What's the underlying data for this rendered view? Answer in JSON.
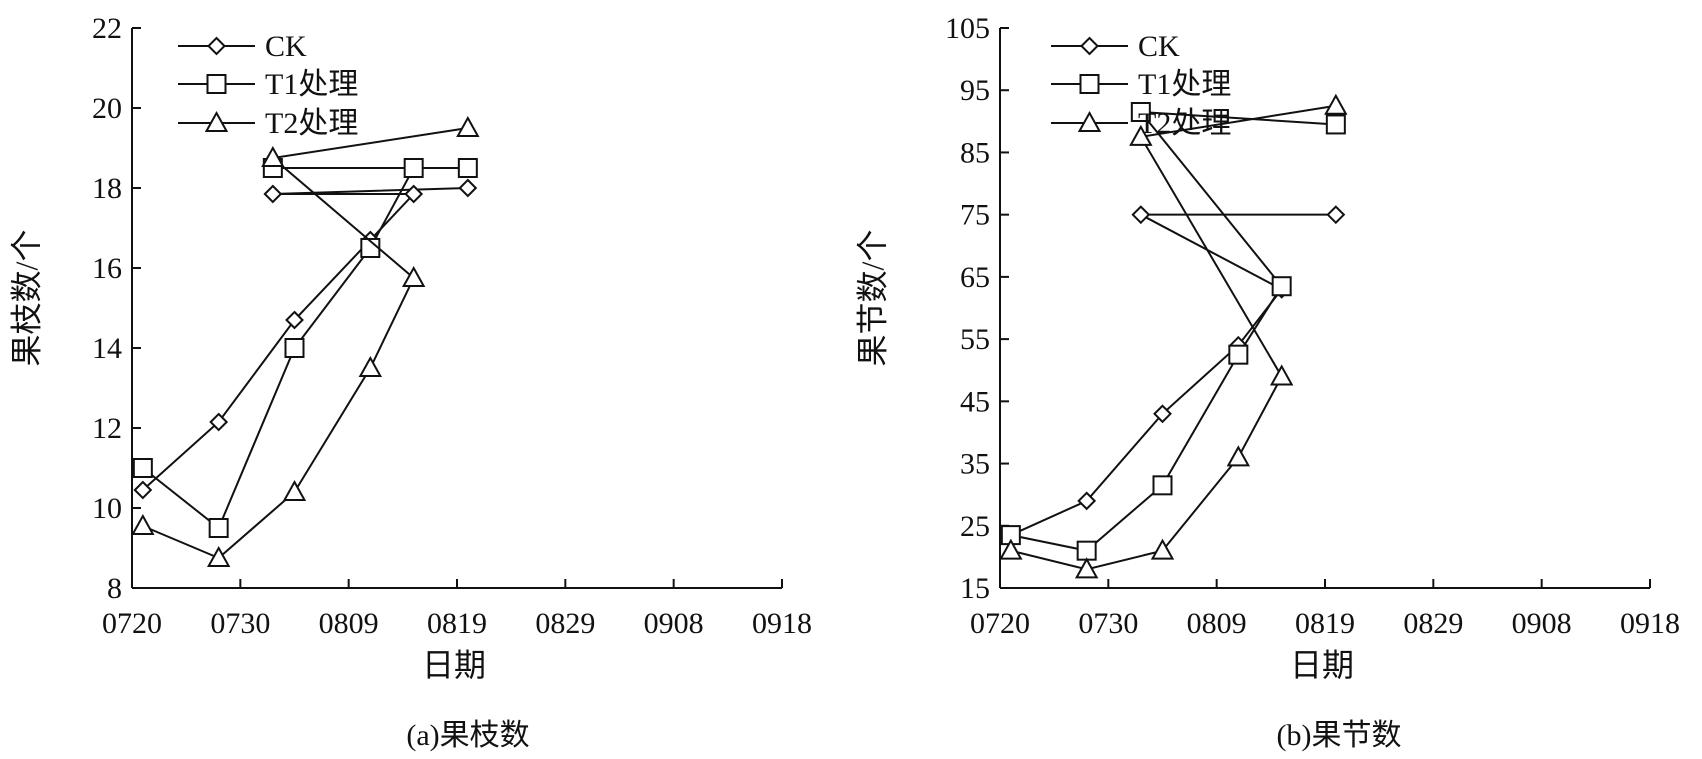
{
  "chart_data": [
    {
      "type": "line",
      "caption": "(a)果枝数",
      "xlabel": "日期",
      "ylabel": "果枝数/个",
      "x_ticks": [
        "0720",
        "0730",
        "0809",
        "0819",
        "0829",
        "0908",
        "0918"
      ],
      "xlim": [
        "0720",
        "0918"
      ],
      "ylim": [
        8,
        22
      ],
      "y_ticks": [
        8,
        10,
        12,
        14,
        16,
        18,
        20,
        22
      ],
      "legend_position": "top-left",
      "grid": false,
      "series": [
        {
          "name": "CK",
          "marker": "diamond",
          "x": [
            "0721",
            "0728",
            "0735",
            "0742",
            "0746",
            "0802",
            "0820"
          ],
          "y": [
            10.45,
            12.15,
            14.7,
            16.7,
            17.85,
            17.85,
            18.0
          ]
        },
        {
          "name": "T1处理",
          "marker": "square",
          "x": [
            "0721",
            "0728",
            "0735",
            "0742",
            "0746",
            "0802",
            "0820"
          ],
          "y": [
            11.0,
            9.5,
            14.0,
            16.5,
            18.5,
            18.5,
            18.5
          ]
        },
        {
          "name": "T2处理",
          "marker": "triangle",
          "x": [
            "0721",
            "0728",
            "0735",
            "0742",
            "0746",
            "0802",
            "0820"
          ],
          "y": [
            9.55,
            8.75,
            10.4,
            13.5,
            15.75,
            18.75,
            19.5
          ]
        }
      ]
    },
    {
      "type": "line",
      "caption": "(b)果节数",
      "xlabel": "日期",
      "ylabel": "果节数/个",
      "x_ticks": [
        "0720",
        "0730",
        "0809",
        "0819",
        "0829",
        "0908",
        "0918"
      ],
      "xlim": [
        "0720",
        "0918"
      ],
      "ylim": [
        15,
        105
      ],
      "y_ticks": [
        15,
        25,
        35,
        45,
        55,
        65,
        75,
        85,
        95,
        105
      ],
      "legend_position": "top-left",
      "grid": false,
      "series": [
        {
          "name": "CK",
          "marker": "diamond",
          "x": [
            "0721",
            "0728",
            "0735",
            "0742",
            "0746",
            "0802",
            "0820"
          ],
          "y": [
            23.5,
            29.0,
            43.0,
            54.0,
            63.0,
            75.0,
            75.0
          ]
        },
        {
          "name": "T1处理",
          "marker": "square",
          "x": [
            "0721",
            "0728",
            "0735",
            "0742",
            "0746",
            "0802",
            "0820"
          ],
          "y": [
            23.5,
            21.0,
            31.5,
            52.5,
            63.5,
            91.5,
            89.5
          ]
        },
        {
          "name": "T2处理",
          "marker": "triangle",
          "x": [
            "0721",
            "0728",
            "0735",
            "0742",
            "0746",
            "0802",
            "0820"
          ],
          "y": [
            21.0,
            18.0,
            21.0,
            36.0,
            49.0,
            87.5,
            92.5
          ]
        }
      ]
    }
  ]
}
